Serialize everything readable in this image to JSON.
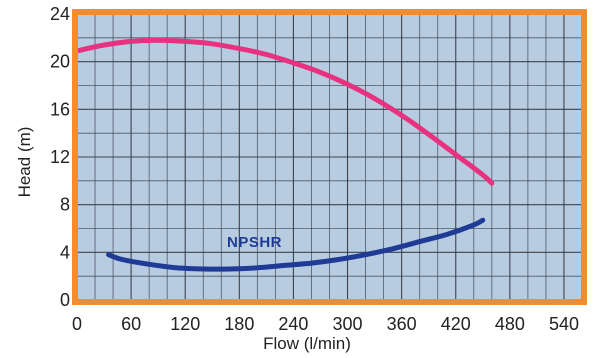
{
  "chart_data": {
    "type": "line",
    "xlabel": "Flow (l/min)",
    "ylabel": "Head (m)",
    "xlim": [
      0,
      560
    ],
    "ylim": [
      0,
      24
    ],
    "x_ticks": [
      0,
      60,
      120,
      180,
      240,
      300,
      360,
      420,
      480,
      540
    ],
    "y_ticks": [
      0,
      4,
      8,
      12,
      16,
      20,
      24
    ],
    "grid": true,
    "legend": "none",
    "annotations": [
      {
        "text": "NPSHR"
      }
    ],
    "series": [
      {
        "color": "#e8327f",
        "x": [
          0,
          30,
          60,
          90,
          120,
          150,
          180,
          210,
          240,
          270,
          300,
          330,
          360,
          390,
          420,
          450,
          460
        ],
        "y": [
          20.9,
          21.4,
          21.7,
          21.8,
          21.7,
          21.5,
          21.1,
          20.6,
          19.9,
          19.1,
          18.1,
          16.9,
          15.5,
          13.9,
          12.2,
          10.5,
          9.8
        ]
      },
      {
        "color": "#1f3b96",
        "x": [
          35,
          50,
          80,
          110,
          140,
          170,
          200,
          230,
          260,
          290,
          320,
          350,
          380,
          410,
          440,
          450
        ],
        "y": [
          3.8,
          3.4,
          3.0,
          2.7,
          2.6,
          2.6,
          2.7,
          2.9,
          3.1,
          3.4,
          3.8,
          4.3,
          4.9,
          5.5,
          6.3,
          6.7
        ]
      }
    ],
    "colors": {
      "plot_background": "#b7cce0",
      "frame": "#f28c30",
      "grid": "#2f3540",
      "annotation": "#1f3b96"
    }
  }
}
